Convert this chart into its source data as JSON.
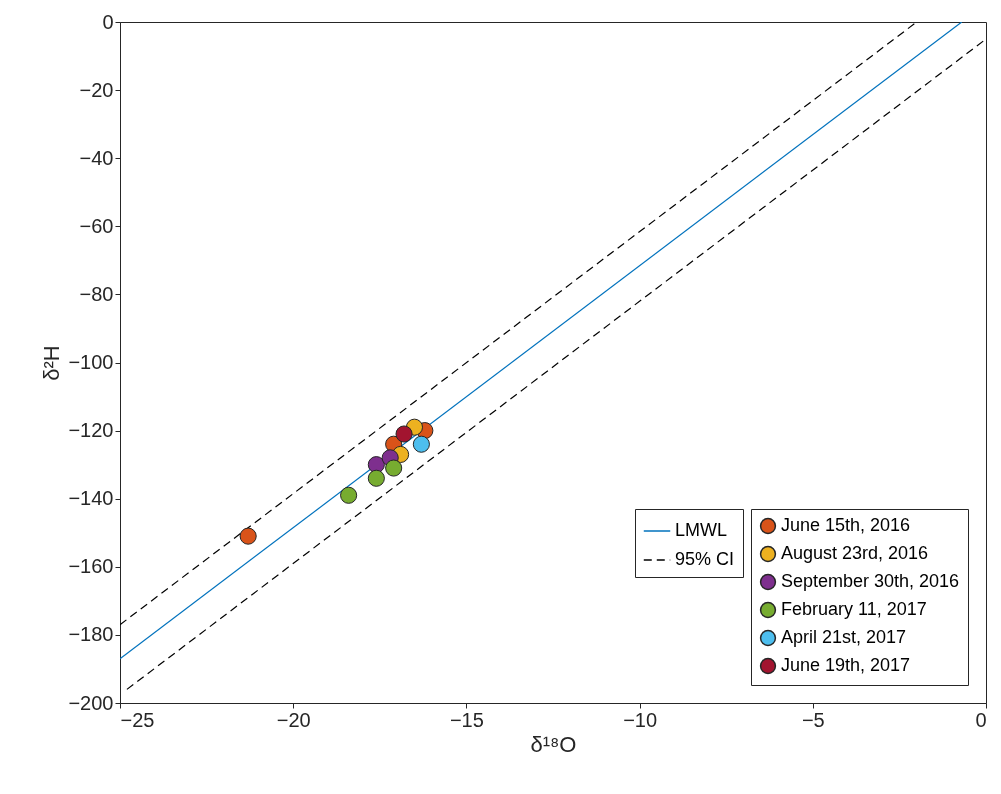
{
  "chart_data": {
    "type": "scatter",
    "xlabel": "δ¹⁸O",
    "ylabel": "δ²H",
    "xlim": [
      -25,
      0
    ],
    "ylim": [
      -200,
      0
    ],
    "xticks": [
      -25,
      -20,
      -15,
      -10,
      -5,
      0
    ],
    "yticks": [
      -200,
      -180,
      -160,
      -140,
      -120,
      -100,
      -80,
      -60,
      -40,
      -20,
      0
    ],
    "grid": false,
    "legend": "bottom right",
    "series": [
      {
        "name": "LMWL",
        "type": "line",
        "color": "#0072bd",
        "line_style": "solid",
        "x": [
          -25,
          -0.7
        ],
        "values": [
          -187,
          0
        ]
      },
      {
        "name": "95% CI",
        "type": "line",
        "color": "#000000",
        "line_style": "dashed",
        "x": [
          -25,
          -2.0
        ],
        "values": [
          -177,
          0
        ]
      },
      {
        "type": "line",
        "color": "#000000",
        "line_style": "dashed",
        "x": [
          -24.8,
          0
        ],
        "values": [
          -196,
          -5
        ]
      },
      {
        "name": "June 15th, 2016",
        "marker": "circle",
        "color": "#d95319",
        "x": [
          -21.3,
          -16.2,
          -17.1
        ],
        "values": [
          -151,
          -120,
          -124
        ]
      },
      {
        "name": "August 23rd, 2016",
        "marker": "circle",
        "color": "#edb120",
        "x": [
          -16.5,
          -16.9
        ],
        "values": [
          -119,
          -127
        ]
      },
      {
        "name": "September 30th, 2016",
        "marker": "circle",
        "color": "#7e2f8e",
        "x": [
          -17.6,
          -17.2
        ],
        "values": [
          -130,
          -128
        ]
      },
      {
        "name": "February 11, 2017",
        "marker": "circle",
        "color": "#77ac30",
        "x": [
          -18.4,
          -17.6,
          -17.1
        ],
        "values": [
          -139,
          -134,
          -131
        ]
      },
      {
        "name": "April 21st, 2017",
        "marker": "circle",
        "color": "#4dbeee",
        "x": [
          -16.3
        ],
        "values": [
          -124
        ]
      },
      {
        "name": "June 19th, 2017",
        "marker": "circle",
        "color": "#a2142f",
        "x": [
          -16.8
        ],
        "values": [
          -121
        ]
      }
    ]
  }
}
